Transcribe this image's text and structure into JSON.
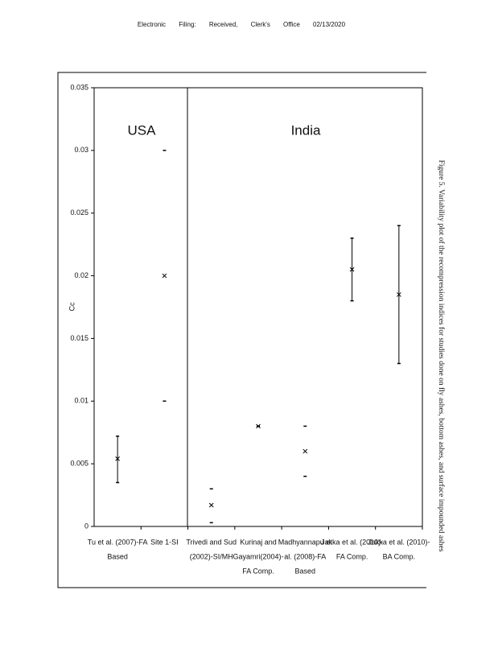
{
  "header": "Electronic Filing: Received, Clerk's Office 02/13/2020",
  "chart_data": {
    "type": "range",
    "ylabel": "Cc",
    "categories": [
      [
        "Tu et al. (2007)-FA",
        "Based"
      ],
      [
        "Site 1-SI"
      ],
      [
        "Trivedi and Sud",
        "(2002)-SI/MH"
      ],
      [
        "Kurinaj and",
        "Gayamri(2004)-",
        "FA Comp."
      ],
      [
        "Madhyannapu et",
        "al. (2008)-FA",
        "Based"
      ],
      [
        "Jakka et al. (2010)-",
        "FA Comp."
      ],
      [
        "Jakka et al. (2010)-",
        "BA Comp."
      ]
    ],
    "values": [
      0.0054,
      0.02,
      0.0017,
      0.008,
      0.006,
      0.0205,
      0.0185
    ],
    "low": [
      0.0035,
      0.01,
      0.0003,
      0.008,
      0.004,
      0.018,
      0.013
    ],
    "high": [
      0.0072,
      0.03,
      0.003,
      0.008,
      0.008,
      0.023,
      0.024
    ],
    "connect": [
      true,
      false,
      false,
      false,
      false,
      true,
      true
    ],
    "color": "#000000",
    "ylim": [
      0,
      0.035
    ],
    "yticks": [
      0,
      0.005,
      0.01,
      0.015,
      0.02,
      0.025,
      0.03,
      0.035
    ],
    "annotations": [
      "USA",
      "India"
    ]
  },
  "caption": "Figure 5. Variability plot of the recompression indices for studies done on fly ashes, bottom ashes, and surface impounded ashes"
}
